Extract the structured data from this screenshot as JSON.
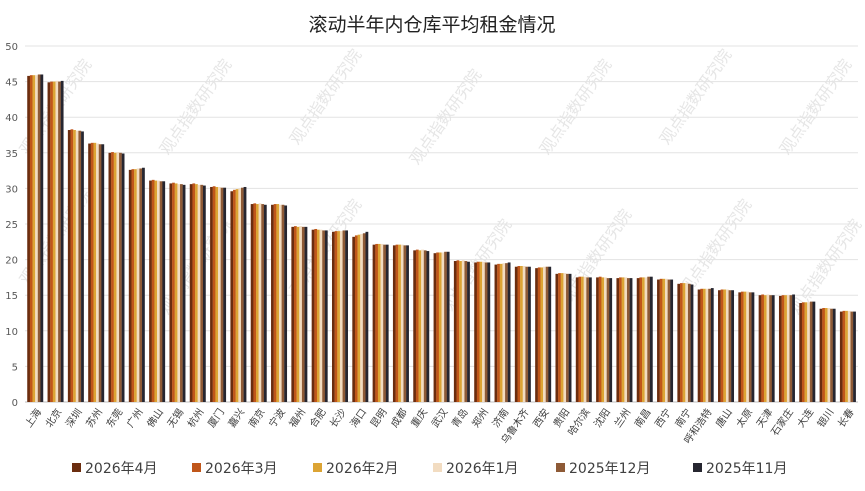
{
  "chart_data": {
    "type": "bar",
    "title": "滚动半年内仓库平均租金情况",
    "xlabel": "",
    "ylabel": "",
    "ylim": [
      0,
      50
    ],
    "yticks": [
      0,
      5,
      10,
      15,
      20,
      25,
      30,
      35,
      40,
      45,
      50
    ],
    "grid": true,
    "legend_position": "bottom",
    "categories": [
      "上海",
      "北京",
      "深圳",
      "苏州",
      "东莞",
      "广州",
      "佛山",
      "无锡",
      "杭州",
      "厦门",
      "嘉兴",
      "南京",
      "宁波",
      "福州",
      "合肥",
      "长沙",
      "海口",
      "昆明",
      "成都",
      "重庆",
      "武汉",
      "青岛",
      "郑州",
      "济南",
      "乌鲁木齐",
      "西安",
      "贵阳",
      "哈尔滨",
      "沈阳",
      "兰州",
      "南昌",
      "西宁",
      "南宁",
      "呼和浩特",
      "唐山",
      "太原",
      "天津",
      "石家庄",
      "大连",
      "银川",
      "长春"
    ],
    "series": [
      {
        "name": "2026年4月",
        "color": "#6b2d0f",
        "values": [
          45.8,
          44.9,
          38.2,
          36.3,
          35.0,
          32.6,
          31.1,
          30.7,
          30.6,
          30.2,
          29.6,
          27.8,
          27.7,
          24.6,
          24.2,
          23.9,
          23.2,
          22.1,
          22.0,
          21.3,
          20.9,
          19.8,
          19.6,
          19.3,
          19.0,
          18.8,
          18.0,
          17.5,
          17.5,
          17.4,
          17.4,
          17.2,
          16.6,
          15.8,
          15.7,
          15.4,
          15.0,
          14.9,
          13.9,
          13.1,
          12.7
        ]
      },
      {
        "name": "2026年3月",
        "color": "#c0561a",
        "values": [
          45.9,
          45.0,
          38.3,
          36.4,
          35.1,
          32.7,
          31.2,
          30.8,
          30.7,
          30.3,
          29.8,
          27.9,
          27.8,
          24.7,
          24.3,
          24.0,
          23.4,
          22.2,
          22.1,
          21.4,
          21.0,
          19.9,
          19.7,
          19.4,
          19.1,
          18.9,
          18.1,
          17.6,
          17.6,
          17.5,
          17.5,
          17.3,
          16.7,
          15.9,
          15.8,
          15.5,
          15.1,
          15.0,
          14.0,
          13.2,
          12.8
        ]
      },
      {
        "name": "2026年2月",
        "color": "#dca434",
        "values": [
          45.9,
          45.0,
          38.2,
          36.4,
          35.0,
          32.7,
          31.1,
          30.7,
          30.6,
          30.2,
          29.9,
          27.8,
          27.8,
          24.6,
          24.2,
          24.0,
          23.5,
          22.2,
          22.1,
          21.3,
          21.0,
          19.8,
          19.7,
          19.4,
          19.1,
          18.9,
          18.1,
          17.6,
          17.5,
          17.5,
          17.5,
          17.3,
          16.7,
          15.9,
          15.8,
          15.5,
          15.0,
          15.0,
          14.0,
          13.2,
          12.8
        ]
      },
      {
        "name": "2026年1月",
        "color": "#f2dcc1",
        "values": [
          45.9,
          45.1,
          38.1,
          36.3,
          35.1,
          32.8,
          31.1,
          30.6,
          30.5,
          30.2,
          30.0,
          27.9,
          27.7,
          24.7,
          24.2,
          24.0,
          23.6,
          22.2,
          22.1,
          21.4,
          21.0,
          19.9,
          19.7,
          19.5,
          19.1,
          19.0,
          18.1,
          17.6,
          17.5,
          17.5,
          17.5,
          17.3,
          16.7,
          15.9,
          15.8,
          15.5,
          15.1,
          15.0,
          14.0,
          13.2,
          12.8
        ]
      },
      {
        "name": "2025年12月",
        "color": "#8e5a36",
        "values": [
          46.0,
          45.0,
          38.1,
          36.2,
          35.0,
          32.8,
          31.0,
          30.6,
          30.5,
          30.1,
          30.1,
          27.8,
          27.7,
          24.6,
          24.1,
          24.1,
          23.7,
          22.1,
          22.0,
          21.3,
          21.1,
          19.8,
          19.6,
          19.5,
          19.0,
          19.0,
          18.0,
          17.5,
          17.4,
          17.4,
          17.6,
          17.2,
          16.6,
          15.9,
          15.7,
          15.4,
          15.0,
          15.0,
          14.1,
          13.1,
          12.7
        ]
      },
      {
        "name": "2025年11月",
        "color": "#262630",
        "values": [
          46.0,
          45.1,
          38.0,
          36.2,
          34.9,
          32.9,
          31.0,
          30.5,
          30.4,
          30.1,
          30.2,
          27.7,
          27.6,
          24.6,
          24.1,
          24.1,
          23.9,
          22.1,
          22.0,
          21.2,
          21.1,
          19.7,
          19.6,
          19.6,
          19.0,
          19.0,
          18.0,
          17.5,
          17.4,
          17.4,
          17.6,
          17.2,
          16.5,
          16.0,
          15.7,
          15.4,
          15.0,
          15.1,
          14.1,
          13.1,
          12.7
        ]
      }
    ]
  },
  "watermark_text": "观点指数研究院"
}
